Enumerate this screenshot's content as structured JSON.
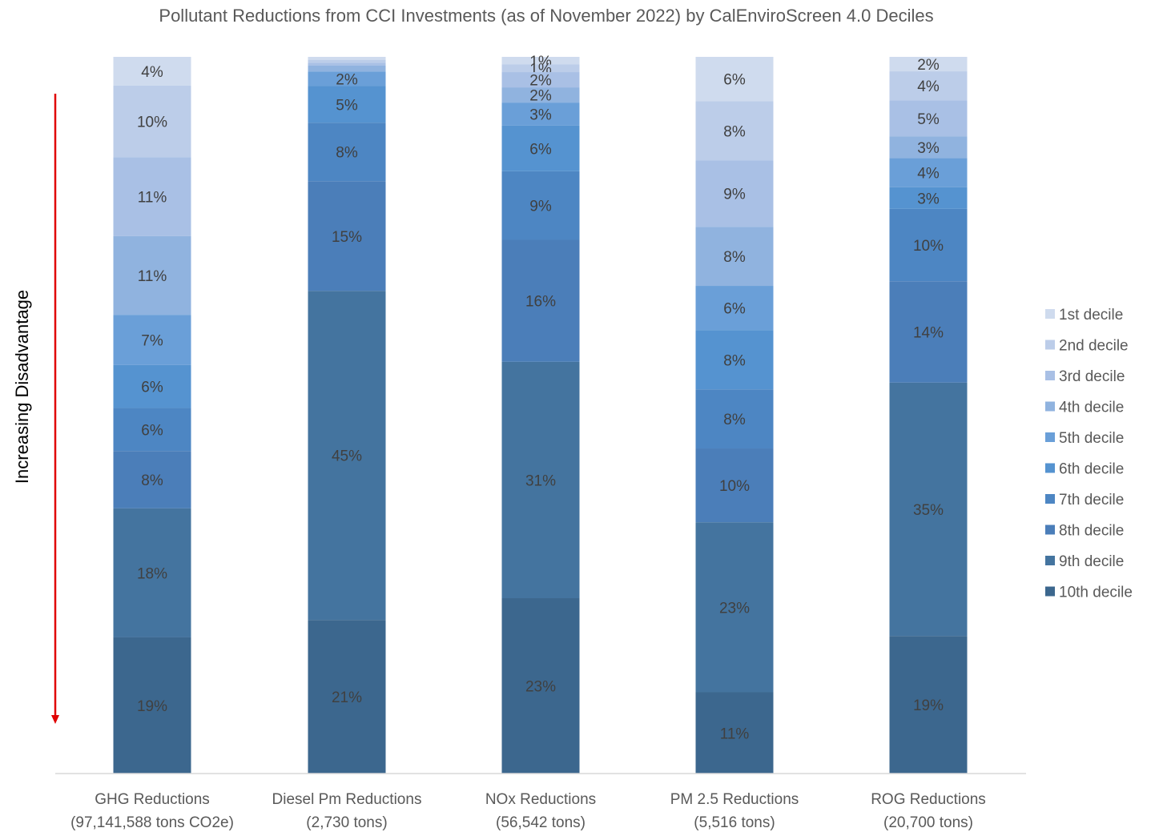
{
  "chart_data": {
    "type": "bar",
    "stacked": true,
    "title": "Pollutant Reductions from CCI Investments (as of November 2022) by CalEnviroScreen 4.0 Deciles",
    "annotation": "Increasing Disadvantage",
    "categories": [
      [
        "GHG Reductions",
        "(97,141,588 tons CO2e)"
      ],
      [
        "Diesel Pm Reductions",
        "(2,730 tons)"
      ],
      [
        "NOx Reductions",
        "(56,542 tons)"
      ],
      [
        "PM 2.5 Reductions",
        "(5,516 tons)"
      ],
      [
        "ROG Reductions",
        "(20,700 tons)"
      ]
    ],
    "series": [
      {
        "name": "1st decile",
        "values": [
          4,
          0.4,
          1,
          6,
          2
        ],
        "labels": [
          "4%",
          "",
          "1%",
          "6%",
          "2%"
        ]
      },
      {
        "name": "2nd decile",
        "values": [
          10,
          0.4,
          1,
          8,
          4
        ],
        "labels": [
          "10%",
          "",
          "1%",
          "8%",
          "4%"
        ]
      },
      {
        "name": "3rd decile",
        "values": [
          11,
          0.4,
          2,
          9,
          5
        ],
        "labels": [
          "11%",
          "",
          "2%",
          "9%",
          "5%"
        ]
      },
      {
        "name": "4th decile",
        "values": [
          11,
          0.8,
          2,
          8,
          3
        ],
        "labels": [
          "11%",
          "",
          "2%",
          "8%",
          "3%"
        ]
      },
      {
        "name": "5th decile",
        "values": [
          7,
          2,
          3,
          6,
          4
        ],
        "labels": [
          "7%",
          "2%",
          "3%",
          "6%",
          "4%"
        ]
      },
      {
        "name": "6th decile",
        "values": [
          6,
          5,
          6,
          8,
          3
        ],
        "labels": [
          "6%",
          "5%",
          "6%",
          "8%",
          "3%"
        ]
      },
      {
        "name": "7th decile",
        "values": [
          6,
          8,
          9,
          8,
          10
        ],
        "labels": [
          "6%",
          "8%",
          "9%",
          "8%",
          "10%"
        ]
      },
      {
        "name": "8th decile",
        "values": [
          8,
          15,
          16,
          10,
          14
        ],
        "labels": [
          "8%",
          "15%",
          "16%",
          "10%",
          "14%"
        ]
      },
      {
        "name": "9th decile",
        "values": [
          18,
          45,
          31,
          23,
          35
        ],
        "labels": [
          "18%",
          "45%",
          "31%",
          "23%",
          "35%"
        ]
      },
      {
        "name": "10th decile",
        "values": [
          19,
          21,
          23,
          11,
          19
        ],
        "labels": [
          "19%",
          "21%",
          "23%",
          "11%",
          "19%"
        ]
      }
    ],
    "colors": [
      "#cfdbee",
      "#bccde9",
      "#a9c0e5",
      "#90b3df",
      "#6a9fd8",
      "#5593d0",
      "#4d86c3",
      "#4b7eb9",
      "#44749f",
      "#3c678e"
    ],
    "legend_position": "right",
    "grid": false,
    "ylim": [
      0,
      100
    ]
  }
}
